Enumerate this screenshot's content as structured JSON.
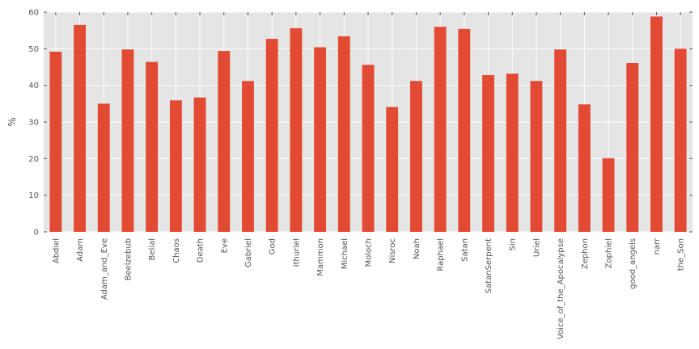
{
  "chart_data": {
    "type": "bar",
    "title": "",
    "xlabel": "",
    "ylabel": "%",
    "ylim": [
      0,
      60
    ],
    "yticks": [
      0,
      10,
      20,
      30,
      40,
      50,
      60
    ],
    "grid": true,
    "legend": "none",
    "colors": {
      "bar": "#e24a33",
      "plot_background": "#e5e5e5",
      "grid": "#ffffff"
    },
    "categories": [
      "Abdiel",
      "Adam",
      "Adam_and_Eve",
      "Beelzebub",
      "Belial",
      "Chaos",
      "Death",
      "Eve",
      "Gabriel",
      "God",
      "Ithuriel",
      "Mammon",
      "Michael",
      "Moloch",
      "Nisroc",
      "Noah",
      "Raphael",
      "Satan",
      "SatanSerpent",
      "Sin",
      "Uriel",
      "Voice_of_the_Apocalypse",
      "Zephon",
      "Zophiel",
      "good_angels",
      "narr",
      "the_Son"
    ],
    "values": [
      49.2,
      56.5,
      35.0,
      49.8,
      46.4,
      35.9,
      36.7,
      49.4,
      41.2,
      52.7,
      55.6,
      50.4,
      53.4,
      45.6,
      34.1,
      41.2,
      56.0,
      55.4,
      42.8,
      43.2,
      41.2,
      49.8,
      34.8,
      20.1,
      46.1,
      58.8,
      50.0
    ]
  }
}
